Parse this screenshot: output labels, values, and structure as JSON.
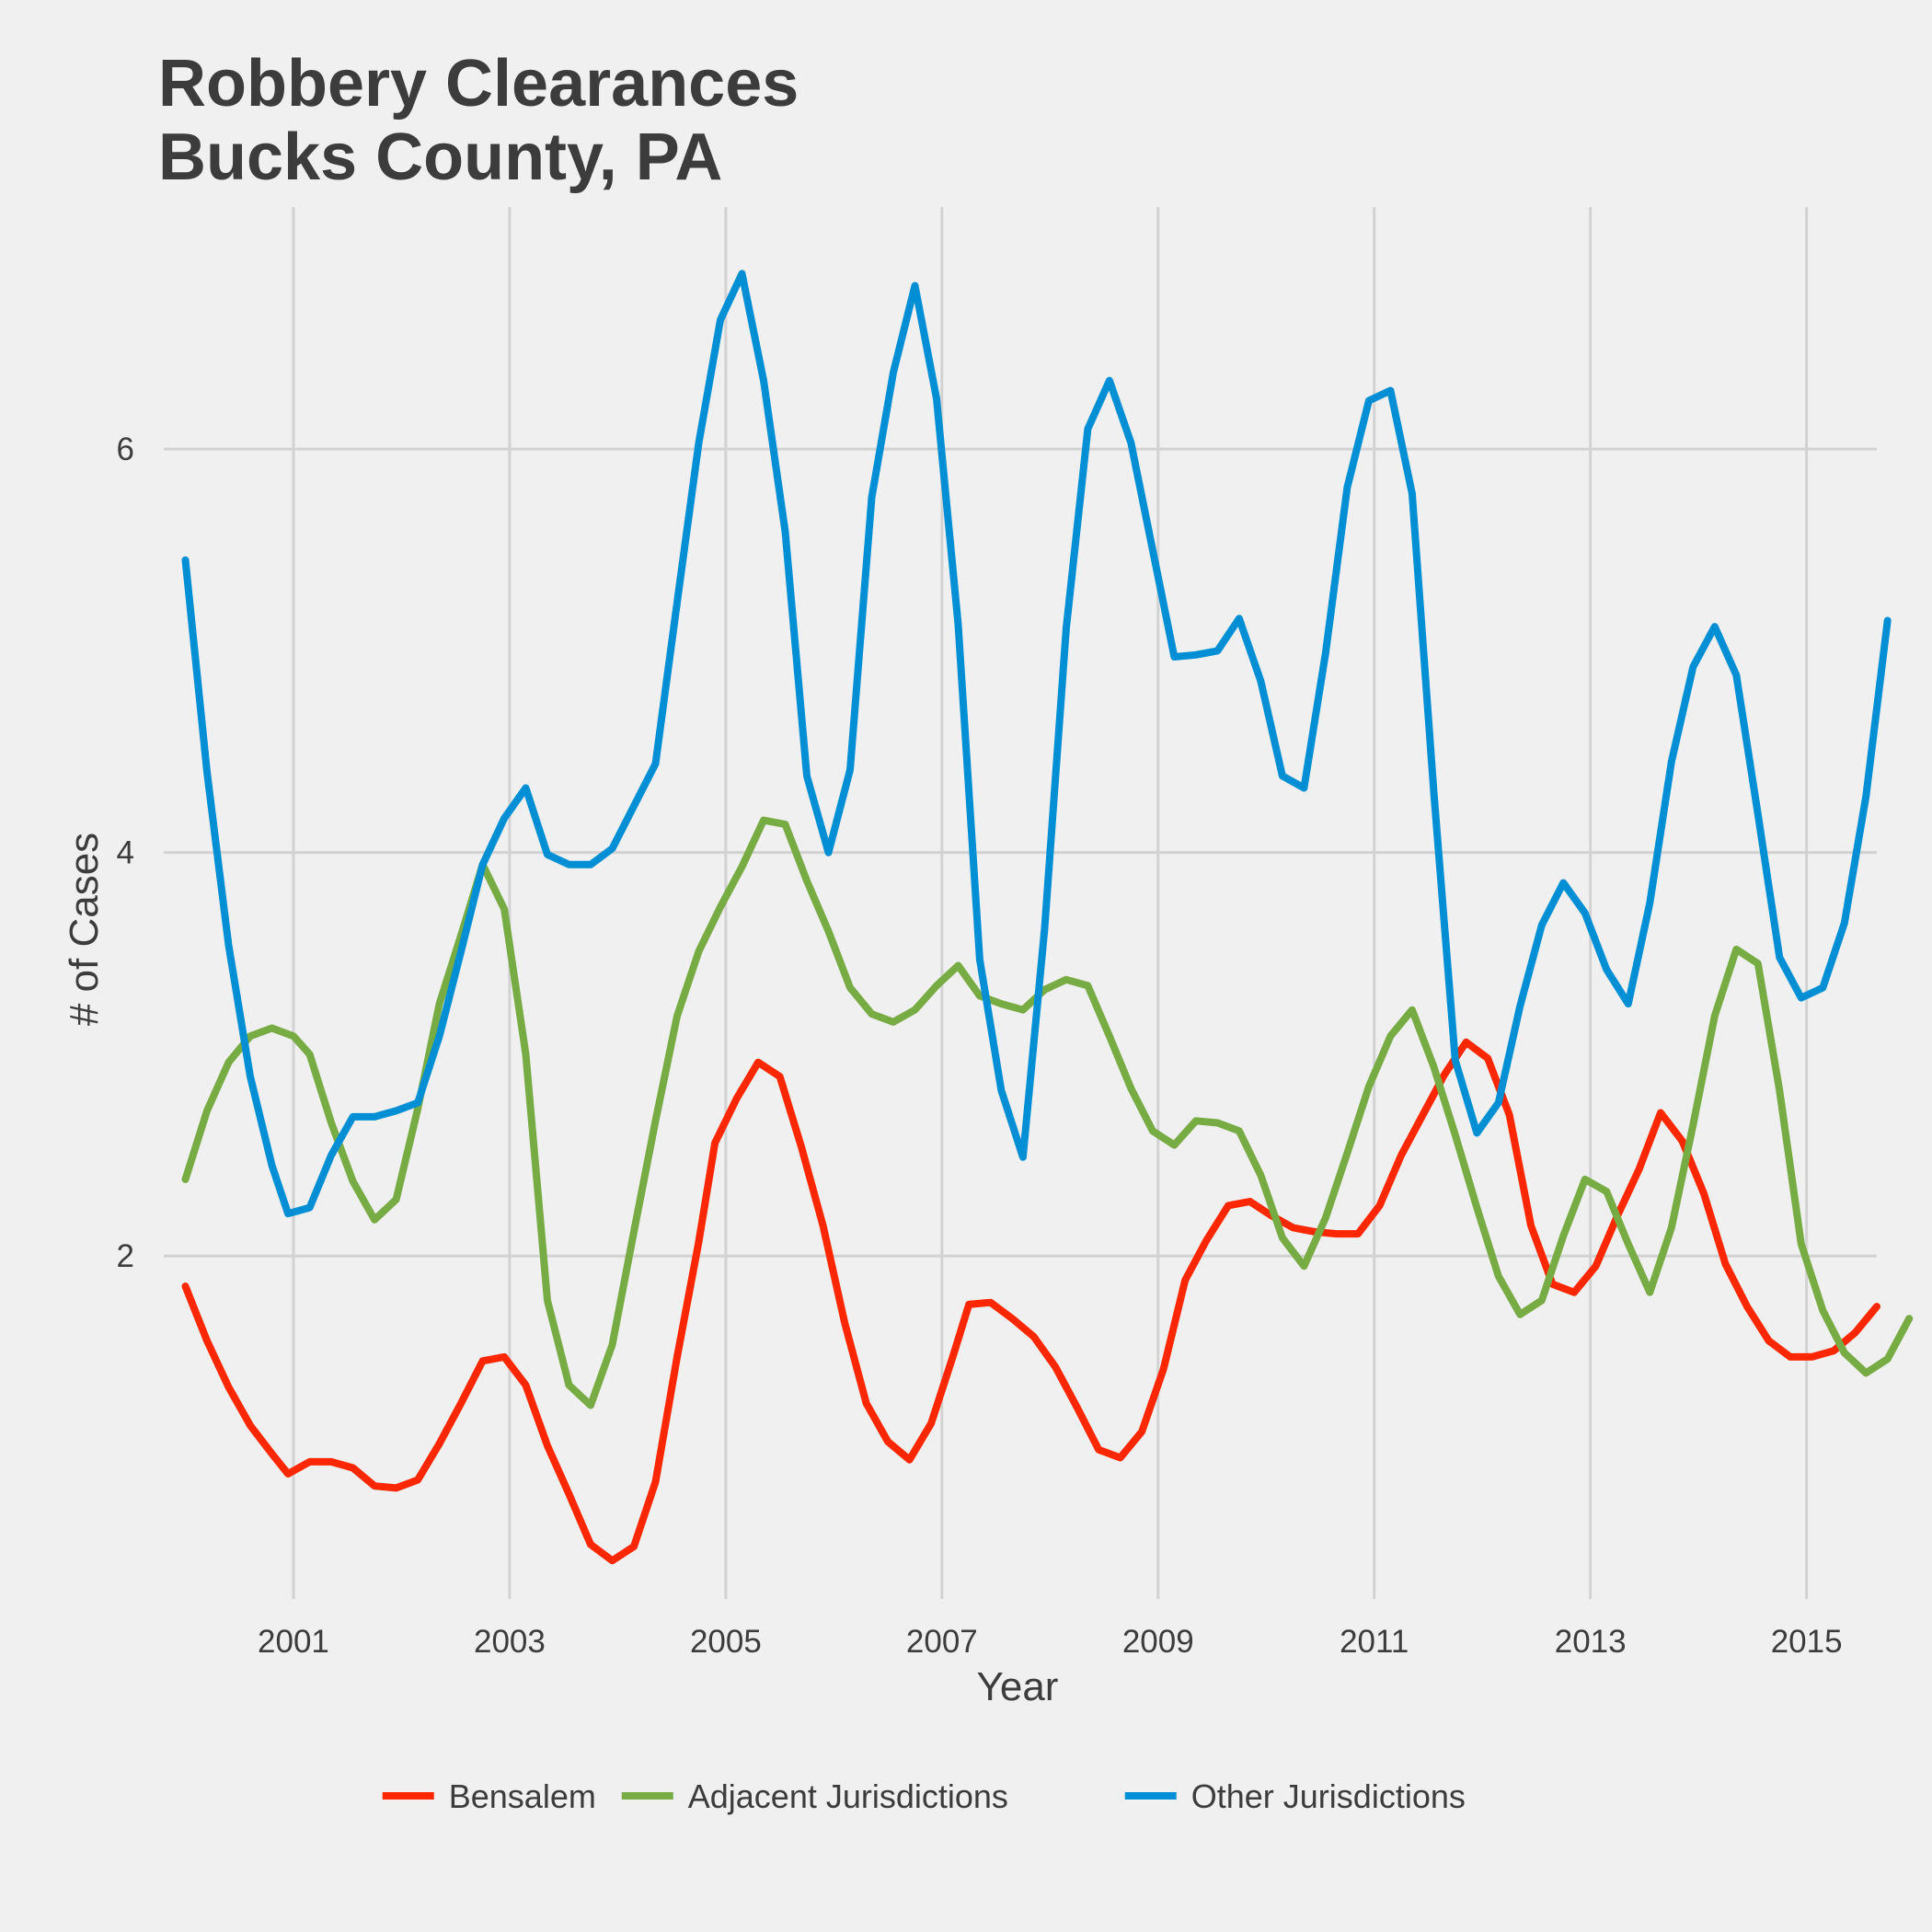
{
  "chart_data": {
    "type": "line",
    "title_lines": [
      "Robbery Clearances",
      "Bucks County, PA"
    ],
    "xlabel": "Year",
    "ylabel": "# of Cases",
    "xlim": [
      1999.8,
      2015.65
    ],
    "ylim": [
      0.3,
      7.2
    ],
    "x_ticks": [
      2001,
      2003,
      2005,
      2007,
      2009,
      2011,
      2013,
      2015
    ],
    "y_ticks": [
      2,
      4,
      6
    ],
    "grid": true,
    "legend_position": "bottom",
    "colors": {
      "Bensalem": "#ff2700",
      "Adjacent Jurisdictions": "#77ab43",
      "Other Jurisdictions": "#008fd5"
    },
    "series": [
      {
        "name": "Bensalem",
        "color": "#ff2700",
        "points": [
          [
            2000.0,
            1.85
          ],
          [
            2000.2,
            1.58
          ],
          [
            2000.4,
            1.35
          ],
          [
            2000.6,
            1.16
          ],
          [
            2000.8,
            1.02
          ],
          [
            2000.95,
            0.92
          ],
          [
            2001.15,
            0.98
          ],
          [
            2001.35,
            0.98
          ],
          [
            2001.55,
            0.95
          ],
          [
            2001.75,
            0.86
          ],
          [
            2001.95,
            0.85
          ],
          [
            2002.15,
            0.89
          ],
          [
            2002.35,
            1.07
          ],
          [
            2002.55,
            1.27
          ],
          [
            2002.75,
            1.48
          ],
          [
            2002.95,
            1.5
          ],
          [
            2003.15,
            1.36
          ],
          [
            2003.35,
            1.06
          ],
          [
            2003.55,
            0.82
          ],
          [
            2003.75,
            0.57
          ],
          [
            2003.95,
            0.49
          ],
          [
            2004.15,
            0.56
          ],
          [
            2004.35,
            0.88
          ],
          [
            2004.55,
            1.5
          ],
          [
            2004.75,
            2.07
          ],
          [
            2004.9,
            2.56
          ],
          [
            2005.1,
            2.78
          ],
          [
            2005.3,
            2.96
          ],
          [
            2005.5,
            2.89
          ],
          [
            2005.7,
            2.54
          ],
          [
            2005.9,
            2.15
          ],
          [
            2006.1,
            1.67
          ],
          [
            2006.3,
            1.27
          ],
          [
            2006.5,
            1.08
          ],
          [
            2006.7,
            0.99
          ],
          [
            2006.9,
            1.17
          ],
          [
            2007.1,
            1.5
          ],
          [
            2007.25,
            1.76
          ],
          [
            2007.45,
            1.77
          ],
          [
            2007.65,
            1.69
          ],
          [
            2007.85,
            1.6
          ],
          [
            2008.05,
            1.45
          ],
          [
            2008.25,
            1.25
          ],
          [
            2008.45,
            1.04
          ],
          [
            2008.65,
            1.0
          ],
          [
            2008.85,
            1.13
          ],
          [
            2009.05,
            1.44
          ],
          [
            2009.25,
            1.88
          ],
          [
            2009.45,
            2.08
          ],
          [
            2009.65,
            2.25
          ],
          [
            2009.85,
            2.27
          ],
          [
            2010.05,
            2.2
          ],
          [
            2010.25,
            2.14
          ],
          [
            2010.45,
            2.12
          ],
          [
            2010.65,
            2.11
          ],
          [
            2010.85,
            2.11
          ],
          [
            2011.05,
            2.25
          ],
          [
            2011.25,
            2.5
          ],
          [
            2011.45,
            2.7
          ],
          [
            2011.65,
            2.9
          ],
          [
            2011.85,
            3.06
          ],
          [
            2012.05,
            2.98
          ],
          [
            2012.25,
            2.7
          ],
          [
            2012.45,
            2.15
          ],
          [
            2012.65,
            1.86
          ],
          [
            2012.85,
            1.82
          ],
          [
            2013.05,
            1.95
          ],
          [
            2013.25,
            2.2
          ],
          [
            2013.45,
            2.43
          ],
          [
            2013.65,
            2.71
          ],
          [
            2013.85,
            2.57
          ],
          [
            2014.05,
            2.31
          ],
          [
            2014.25,
            1.96
          ],
          [
            2014.45,
            1.75
          ],
          [
            2014.65,
            1.58
          ],
          [
            2014.85,
            1.5
          ],
          [
            2015.05,
            1.5
          ],
          [
            2015.25,
            1.53
          ],
          [
            2015.45,
            1.62
          ],
          [
            2015.65,
            1.75
          ]
        ]
      },
      {
        "name": "Adjacent Jurisdictions",
        "color": "#77ab43",
        "points": [
          [
            2000.0,
            2.38
          ],
          [
            2000.2,
            2.72
          ],
          [
            2000.4,
            2.96
          ],
          [
            2000.6,
            3.09
          ],
          [
            2000.8,
            3.13
          ],
          [
            2001.0,
            3.09
          ],
          [
            2001.15,
            3.0
          ],
          [
            2001.35,
            2.66
          ],
          [
            2001.55,
            2.37
          ],
          [
            2001.75,
            2.18
          ],
          [
            2001.95,
            2.28
          ],
          [
            2002.15,
            2.73
          ],
          [
            2002.35,
            3.25
          ],
          [
            2002.55,
            3.59
          ],
          [
            2002.75,
            3.94
          ],
          [
            2002.95,
            3.72
          ],
          [
            2003.15,
            3.0
          ],
          [
            2003.35,
            1.78
          ],
          [
            2003.55,
            1.36
          ],
          [
            2003.75,
            1.26
          ],
          [
            2003.95,
            1.56
          ],
          [
            2004.15,
            2.12
          ],
          [
            2004.35,
            2.67
          ],
          [
            2004.55,
            3.19
          ],
          [
            2004.75,
            3.51
          ],
          [
            2004.95,
            3.73
          ],
          [
            2005.15,
            3.93
          ],
          [
            2005.35,
            4.16
          ],
          [
            2005.55,
            4.14
          ],
          [
            2005.75,
            3.86
          ],
          [
            2005.95,
            3.61
          ],
          [
            2006.15,
            3.33
          ],
          [
            2006.35,
            3.2
          ],
          [
            2006.55,
            3.16
          ],
          [
            2006.75,
            3.22
          ],
          [
            2006.95,
            3.34
          ],
          [
            2007.15,
            3.44
          ],
          [
            2007.35,
            3.29
          ],
          [
            2007.55,
            3.25
          ],
          [
            2007.75,
            3.22
          ],
          [
            2007.95,
            3.32
          ],
          [
            2008.15,
            3.37
          ],
          [
            2008.35,
            3.34
          ],
          [
            2008.55,
            3.09
          ],
          [
            2008.75,
            2.83
          ],
          [
            2008.95,
            2.62
          ],
          [
            2009.15,
            2.55
          ],
          [
            2009.35,
            2.67
          ],
          [
            2009.55,
            2.66
          ],
          [
            2009.75,
            2.62
          ],
          [
            2009.95,
            2.4
          ],
          [
            2010.15,
            2.09
          ],
          [
            2010.35,
            1.95
          ],
          [
            2010.55,
            2.19
          ],
          [
            2010.75,
            2.51
          ],
          [
            2010.95,
            2.84
          ],
          [
            2011.15,
            3.09
          ],
          [
            2011.35,
            3.22
          ],
          [
            2011.55,
            2.94
          ],
          [
            2011.75,
            2.6
          ],
          [
            2011.95,
            2.24
          ],
          [
            2012.15,
            1.9
          ],
          [
            2012.35,
            1.71
          ],
          [
            2012.55,
            1.78
          ],
          [
            2012.75,
            2.1
          ],
          [
            2012.95,
            2.38
          ],
          [
            2013.15,
            2.32
          ],
          [
            2013.35,
            2.06
          ],
          [
            2013.55,
            1.82
          ],
          [
            2013.75,
            2.14
          ],
          [
            2013.95,
            2.65
          ],
          [
            2014.15,
            3.19
          ],
          [
            2014.35,
            3.52
          ],
          [
            2014.55,
            3.45
          ],
          [
            2014.75,
            2.82
          ],
          [
            2014.95,
            2.06
          ],
          [
            2015.15,
            1.73
          ],
          [
            2015.35,
            1.52
          ],
          [
            2015.55,
            1.42
          ],
          [
            2015.75,
            1.49
          ],
          [
            2015.95,
            1.69
          ]
        ]
      },
      {
        "name": "Other Jurisdictions",
        "color": "#008fd5",
        "points": [
          [
            2000.0,
            5.45
          ],
          [
            2000.2,
            4.4
          ],
          [
            2000.4,
            3.54
          ],
          [
            2000.6,
            2.89
          ],
          [
            2000.8,
            2.45
          ],
          [
            2000.95,
            2.21
          ],
          [
            2001.15,
            2.24
          ],
          [
            2001.35,
            2.5
          ],
          [
            2001.55,
            2.69
          ],
          [
            2001.75,
            2.69
          ],
          [
            2001.95,
            2.72
          ],
          [
            2002.15,
            2.76
          ],
          [
            2002.35,
            3.09
          ],
          [
            2002.55,
            3.51
          ],
          [
            2002.75,
            3.94
          ],
          [
            2002.95,
            4.17
          ],
          [
            2003.15,
            4.32
          ],
          [
            2003.35,
            3.99
          ],
          [
            2003.55,
            3.94
          ],
          [
            2003.75,
            3.94
          ],
          [
            2003.95,
            4.02
          ],
          [
            2004.15,
            4.23
          ],
          [
            2004.35,
            4.44
          ],
          [
            2004.55,
            5.24
          ],
          [
            2004.75,
            6.03
          ],
          [
            2004.95,
            6.64
          ],
          [
            2005.15,
            6.87
          ],
          [
            2005.35,
            6.34
          ],
          [
            2005.55,
            5.59
          ],
          [
            2005.75,
            4.38
          ],
          [
            2005.95,
            4.0
          ],
          [
            2006.15,
            4.41
          ],
          [
            2006.35,
            5.76
          ],
          [
            2006.55,
            6.38
          ],
          [
            2006.75,
            6.81
          ],
          [
            2006.95,
            6.25
          ],
          [
            2007.15,
            5.13
          ],
          [
            2007.35,
            3.47
          ],
          [
            2007.55,
            2.82
          ],
          [
            2007.75,
            2.49
          ],
          [
            2007.95,
            3.62
          ],
          [
            2008.15,
            5.11
          ],
          [
            2008.35,
            6.1
          ],
          [
            2008.55,
            6.34
          ],
          [
            2008.75,
            6.03
          ],
          [
            2008.95,
            5.5
          ],
          [
            2009.15,
            4.97
          ],
          [
            2009.35,
            4.98
          ],
          [
            2009.55,
            5.0
          ],
          [
            2009.75,
            5.16
          ],
          [
            2009.95,
            4.85
          ],
          [
            2010.15,
            4.38
          ],
          [
            2010.35,
            4.32
          ],
          [
            2010.55,
            4.99
          ],
          [
            2010.75,
            5.81
          ],
          [
            2010.95,
            6.24
          ],
          [
            2011.15,
            6.29
          ],
          [
            2011.35,
            5.78
          ],
          [
            2011.55,
            4.31
          ],
          [
            2011.75,
            2.97
          ],
          [
            2011.95,
            2.61
          ],
          [
            2012.15,
            2.76
          ],
          [
            2012.35,
            3.24
          ],
          [
            2012.55,
            3.64
          ],
          [
            2012.75,
            3.85
          ],
          [
            2012.95,
            3.7
          ],
          [
            2013.15,
            3.42
          ],
          [
            2013.35,
            3.25
          ],
          [
            2013.55,
            3.75
          ],
          [
            2013.75,
            4.45
          ],
          [
            2013.95,
            4.92
          ],
          [
            2014.15,
            5.12
          ],
          [
            2014.35,
            4.88
          ],
          [
            2014.55,
            4.19
          ],
          [
            2014.75,
            3.48
          ],
          [
            2014.95,
            3.28
          ],
          [
            2015.15,
            3.33
          ],
          [
            2015.35,
            3.65
          ],
          [
            2015.55,
            4.28
          ],
          [
            2015.75,
            5.15
          ]
        ]
      }
    ]
  }
}
